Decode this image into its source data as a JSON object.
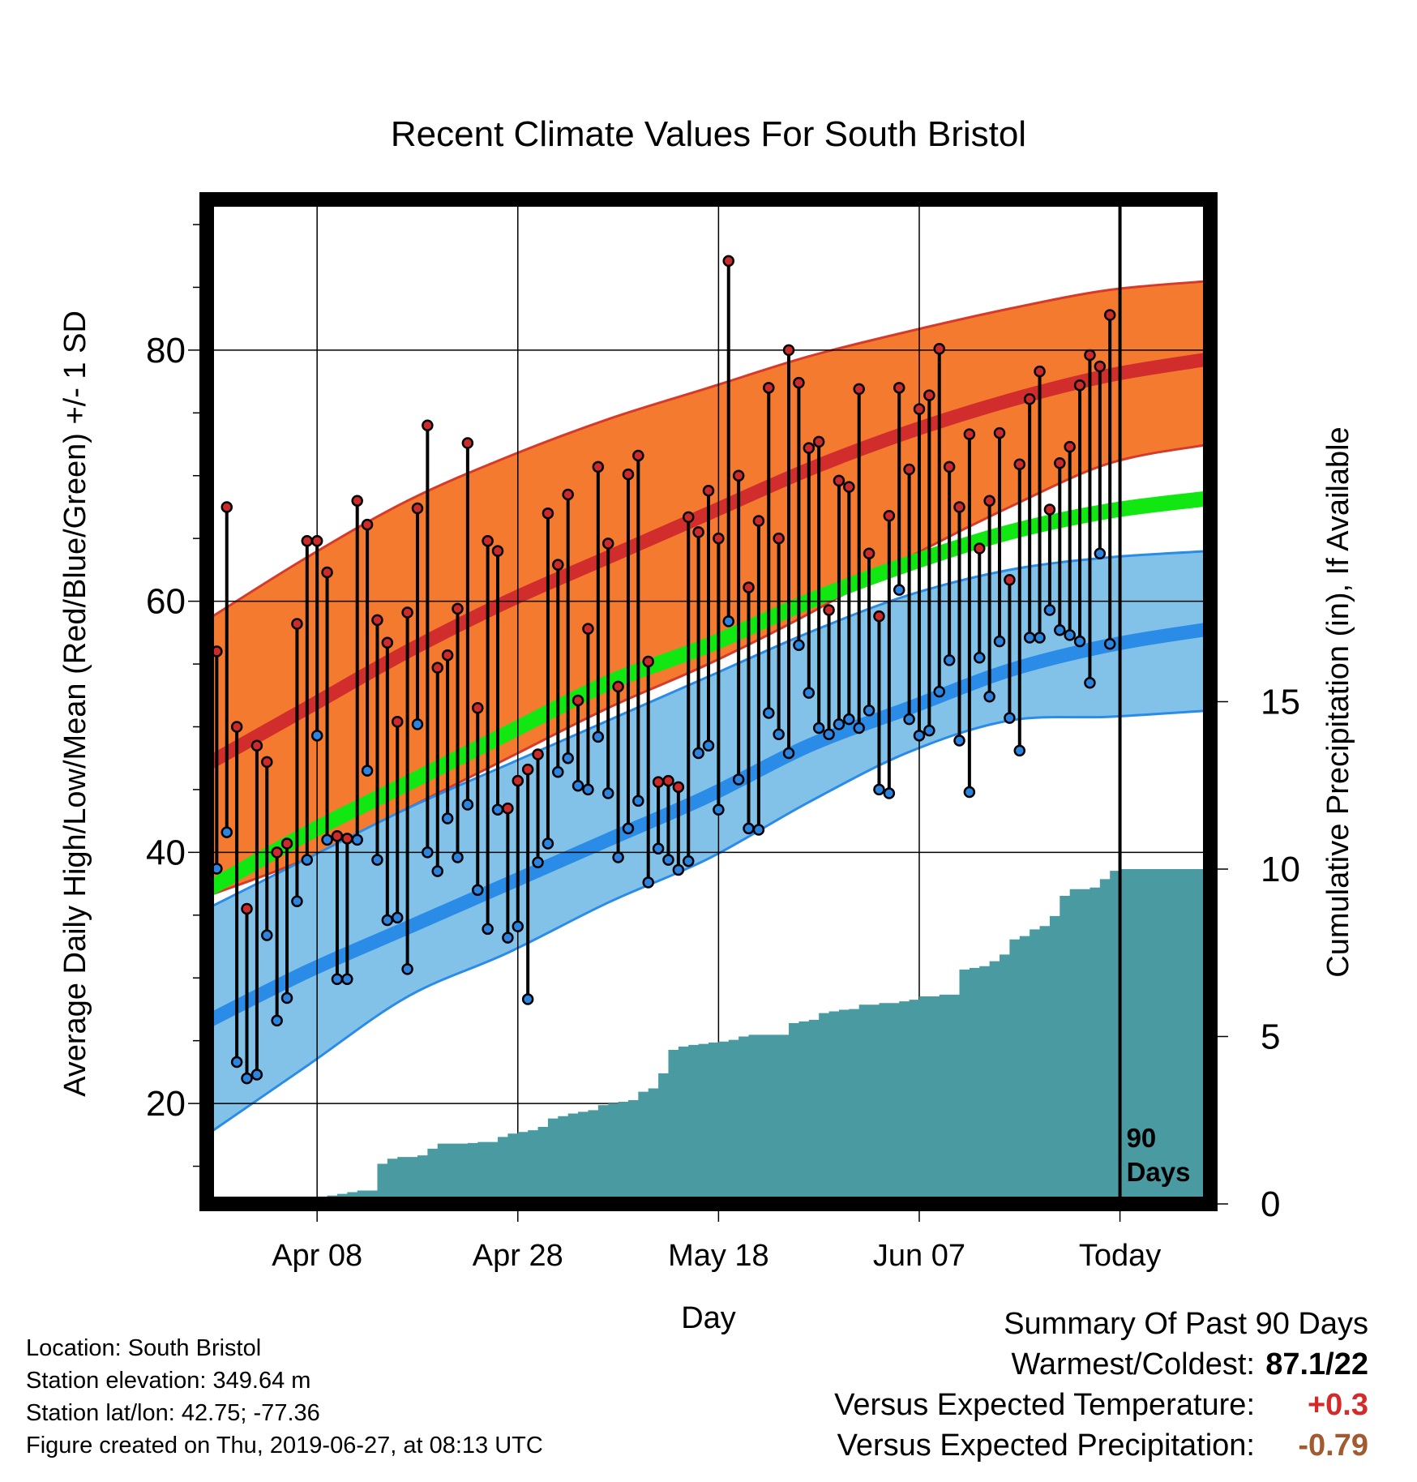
{
  "chart_data": {
    "type": "line",
    "title": "Recent Climate Values For South Bristol",
    "xlabel": "Day",
    "ylabel": "Average Daily High/Low/Mean (Red/Blue/Green) +/- 1 SD",
    "ylabel_right": "Cumulative Precipitation (in), If Available",
    "ylim": [
      12,
      92
    ],
    "ylim_right": [
      0,
      30
    ],
    "xlim": [
      -1,
      99
    ],
    "x_ticks": [
      {
        "x": 10,
        "label": "Apr 08"
      },
      {
        "x": 30,
        "label": "Apr 28"
      },
      {
        "x": 50,
        "label": "May 18"
      },
      {
        "x": 70,
        "label": "Jun 07"
      },
      {
        "x": 90,
        "label": "Today"
      }
    ],
    "y_ticks_left": [
      20,
      40,
      60,
      80
    ],
    "y_ticks_right": [
      0,
      5,
      10,
      15
    ],
    "grid": true,
    "today_marker": {
      "x": 90,
      "label_line1": "90",
      "label_line2": "Days"
    },
    "climatology": {
      "x": [
        -1,
        9,
        19,
        29,
        39,
        49,
        59,
        69,
        79,
        89,
        99
      ],
      "normal_high": [
        47,
        51.5,
        56,
        60,
        63.5,
        67,
        70.5,
        73.5,
        76,
        78,
        79.3
      ],
      "normal_high_sd_upper": [
        58.5,
        63.5,
        68,
        71.5,
        74.5,
        77,
        79.5,
        81.5,
        83.3,
        84.8,
        85.5
      ],
      "normal_high_sd_lower": [
        36.5,
        39.5,
        43.5,
        47.5,
        51.5,
        55,
        59,
        63.5,
        67.5,
        71,
        72.5
      ],
      "normal_mean": [
        37,
        41.5,
        45.5,
        49.5,
        53.5,
        56.5,
        60,
        63,
        65.5,
        67.2,
        68.2
      ],
      "normal_low": [
        26.5,
        30.5,
        34,
        37.5,
        41,
        44.5,
        48.5,
        51.5,
        54.5,
        56.5,
        57.8
      ],
      "normal_low_sd_upper": [
        35.5,
        39.5,
        43.5,
        47,
        50.5,
        54,
        57.5,
        60.5,
        62.5,
        63.5,
        64
      ],
      "normal_low_sd_lower": [
        17.5,
        23,
        28.5,
        32,
        36,
        39.5,
        44,
        48,
        50.5,
        50.8,
        51.3
      ]
    },
    "observed_high": [
      56,
      67.5,
      50,
      35.5,
      48.5,
      47.2,
      40,
      40.7,
      58.2,
      64.8,
      64.8,
      62.3,
      41.3,
      41.1,
      68,
      66.1,
      58.5,
      56.7,
      50.4,
      59.1,
      67.4,
      74,
      54.7,
      55.7,
      59.4,
      72.6,
      51.5,
      64.8,
      64,
      43.5,
      45.7,
      46.6,
      47.8,
      67,
      62.9,
      68.5,
      52.1,
      57.8,
      70.7,
      64.6,
      53.2,
      70.1,
      71.6,
      55.2,
      45.6,
      45.7,
      45.2,
      66.7,
      65.5,
      68.8,
      65,
      87.1,
      70,
      61.1,
      66.4,
      77,
      65,
      80,
      77.4,
      72.2,
      72.7,
      59.3,
      69.6,
      69.1,
      76.9,
      63.8,
      58.8,
      66.8,
      77,
      70.5,
      75.3,
      76.4,
      80.1,
      70.7,
      67.5,
      73.3,
      64.2,
      68,
      73.4,
      61.7,
      70.9,
      76.1,
      78.3,
      67.3,
      71,
      72.3,
      77.2,
      79.6,
      78.7,
      82.8
    ],
    "observed_low": [
      38.7,
      41.6,
      23.3,
      22,
      22.3,
      33.4,
      26.6,
      28.4,
      36.1,
      39.4,
      49.3,
      41,
      29.9,
      29.9,
      41,
      46.5,
      39.4,
      34.6,
      34.8,
      30.7,
      50.2,
      40,
      38.5,
      42.7,
      39.6,
      43.8,
      37,
      33.9,
      43.4,
      33.2,
      34.1,
      28.3,
      39.2,
      40.7,
      46.4,
      47.5,
      45.3,
      45,
      49.2,
      44.7,
      39.6,
      41.9,
      44.1,
      37.6,
      40.3,
      39.4,
      38.6,
      39.3,
      47.9,
      48.5,
      43.4,
      58.4,
      45.8,
      41.9,
      41.8,
      51.1,
      49.4,
      47.9,
      56.5,
      52.7,
      49.9,
      49.4,
      50.2,
      50.6,
      49.9,
      51.3,
      45,
      44.7,
      60.9,
      50.6,
      49.3,
      49.7,
      52.8,
      55.3,
      48.9,
      44.8,
      55.5,
      52.4,
      56.8,
      50.7,
      48.1,
      57.1,
      57.1,
      59.3,
      57.7,
      57.3,
      56.8,
      53.5,
      63.8,
      56.6
    ],
    "cumulative_precip": [
      0,
      0,
      0,
      0,
      0,
      0,
      0,
      0.1,
      0.1,
      0.15,
      0.2,
      0.25,
      0.3,
      0.35,
      0.4,
      0.4,
      1.2,
      1.35,
      1.4,
      1.4,
      1.45,
      1.65,
      1.8,
      1.8,
      1.8,
      1.82,
      1.85,
      1.85,
      2,
      2.1,
      2.15,
      2.2,
      2.3,
      2.55,
      2.62,
      2.7,
      2.75,
      2.8,
      2.95,
      3,
      3.05,
      3.1,
      3.35,
      3.45,
      3.9,
      4.6,
      4.7,
      4.75,
      4.78,
      4.82,
      4.85,
      4.9,
      5,
      5.05,
      5.05,
      5.05,
      5.05,
      5.4,
      5.45,
      5.5,
      5.7,
      5.75,
      5.8,
      5.82,
      5.95,
      5.95,
      6,
      6,
      6.05,
      6.1,
      6.2,
      6.2,
      6.25,
      6.25,
      7,
      7.05,
      7.1,
      7.25,
      7.45,
      7.9,
      8,
      8.2,
      8.3,
      8.6,
      9.2,
      9.4,
      9.4,
      9.45,
      9.7,
      9.95,
      10
    ],
    "precip_through": [
      90,
      99,
      10
    ]
  },
  "metadata": {
    "location": "Location: South Bristol",
    "elevation": "Station elevation: 349.64 m",
    "latlon": "Station lat/lon: 42.75; -77.36",
    "created": "Figure created on Thu, 2019-06-27, at 08:13 UTC"
  },
  "summary": {
    "title": "Summary Of Past 90 Days",
    "warmest_coldest_label": "Warmest/Coldest:",
    "warmest_coldest_value": "87.1/22",
    "temp_label": "Versus Expected Temperature:",
    "temp_value": "+0.3",
    "precip_label": "Versus Expected Precipitation:",
    "precip_value": "-0.79"
  },
  "colors": {
    "high_band": "#f47a30",
    "high_band_edge": "#d63a2a",
    "high_line": "#d22d2d",
    "low_band": "#82c2e8",
    "low_band_edge": "#2b8ce8",
    "low_line": "#2b8ce8",
    "mean_line": "#11e811",
    "precip_fill": "#4a9aa2",
    "high_dot": "#cd2b2b",
    "low_dot": "#2a84e0",
    "temp_positive": "#d42a2a",
    "precip_negative": "#a25a30"
  }
}
